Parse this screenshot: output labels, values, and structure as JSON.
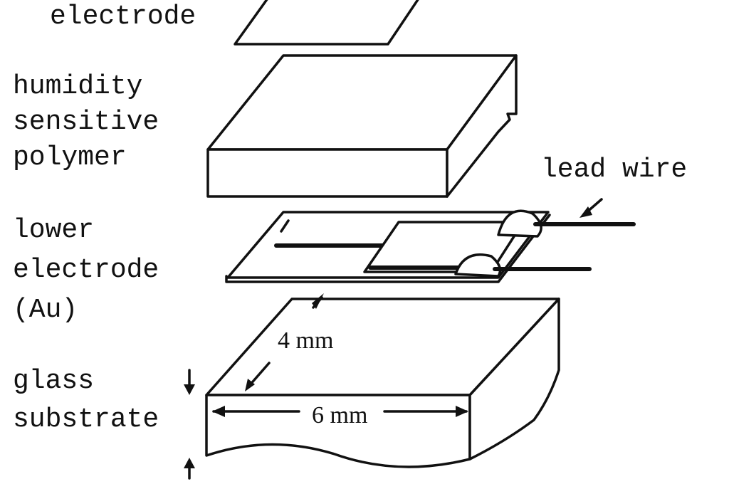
{
  "labels": {
    "upper_electrode": "electrode",
    "polymer": [
      "humidity",
      "sensitive",
      "polymer"
    ],
    "lower_electrode": [
      "lower",
      "electrode",
      "(Au)"
    ],
    "substrate": [
      "glass",
      "substrate"
    ],
    "lead_wire": "lead wire"
  },
  "dimensions": {
    "depth": "4 mm",
    "width": "6 mm"
  }
}
